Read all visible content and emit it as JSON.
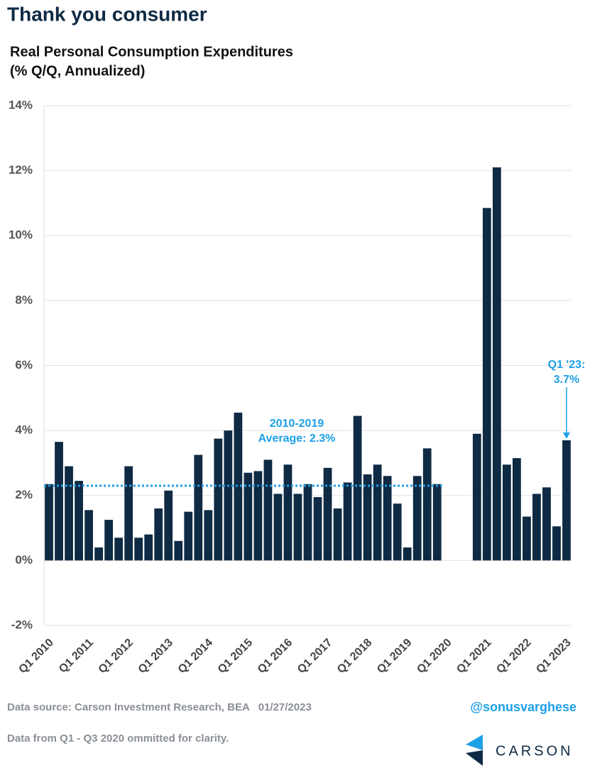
{
  "header": {
    "title": "Thank you consumer"
  },
  "chart_data": {
    "type": "bar",
    "title": "Real Personal Consumption Expenditures",
    "subtitle": "(% Q/Q, Annualized)",
    "categories": [
      "Q1 2010",
      null,
      null,
      null,
      "Q1 2011",
      null,
      null,
      null,
      "Q1 2012",
      null,
      null,
      null,
      "Q1 2013",
      null,
      null,
      null,
      "Q1 2014",
      null,
      null,
      null,
      "Q1 2015",
      null,
      null,
      null,
      "Q1 2016",
      null,
      null,
      null,
      "Q1 2017",
      null,
      null,
      null,
      "Q1 2018",
      null,
      null,
      null,
      "Q1 2019",
      null,
      null,
      null,
      "Q1 2020",
      null,
      null,
      null,
      "Q1 2021",
      null,
      null,
      null,
      "Q1 2022",
      null,
      null,
      null,
      "Q1 2023"
    ],
    "values": [
      2.35,
      3.65,
      2.9,
      2.45,
      1.55,
      0.4,
      1.25,
      0.7,
      2.9,
      0.7,
      0.8,
      1.6,
      2.15,
      0.6,
      1.5,
      3.25,
      1.55,
      3.75,
      4.0,
      4.55,
      2.7,
      2.75,
      3.1,
      2.05,
      2.95,
      2.05,
      2.35,
      1.95,
      2.85,
      1.6,
      2.4,
      4.45,
      2.65,
      2.95,
      2.6,
      1.75,
      0.4,
      2.6,
      3.45,
      2.35,
      null,
      null,
      null,
      3.9,
      10.85,
      12.1,
      2.95,
      3.15,
      1.35,
      2.05,
      2.25,
      1.05,
      3.7
    ],
    "color": "#0f2a44",
    "ylim": [
      -2,
      14
    ],
    "yticks": [
      {
        "value": -2,
        "label": "-2%"
      },
      {
        "value": 0,
        "label": "0%"
      },
      {
        "value": 2,
        "label": "2%"
      },
      {
        "value": 4,
        "label": "4%"
      },
      {
        "value": 6,
        "label": "6%"
      },
      {
        "value": 8,
        "label": "8%"
      },
      {
        "value": 10,
        "label": "10%"
      },
      {
        "value": 12,
        "label": "12%"
      },
      {
        "value": 14,
        "label": "14%"
      }
    ],
    "grid": true,
    "average": {
      "value": 2.3,
      "label": [
        "2010-2019",
        "Average: 2.3%"
      ],
      "color": "#1ea0e6"
    },
    "callout": {
      "label": [
        "Q1 '23:",
        "3.7%"
      ],
      "color": "#1ea0e6"
    }
  },
  "footer": {
    "source": "Data source: Carson Investment Research, BEA   01/27/2023",
    "handle": "@sonusvarghese",
    "note": "Data from Q1 - Q3 2020 ommitted for clarity.",
    "brand": "CARSON"
  }
}
